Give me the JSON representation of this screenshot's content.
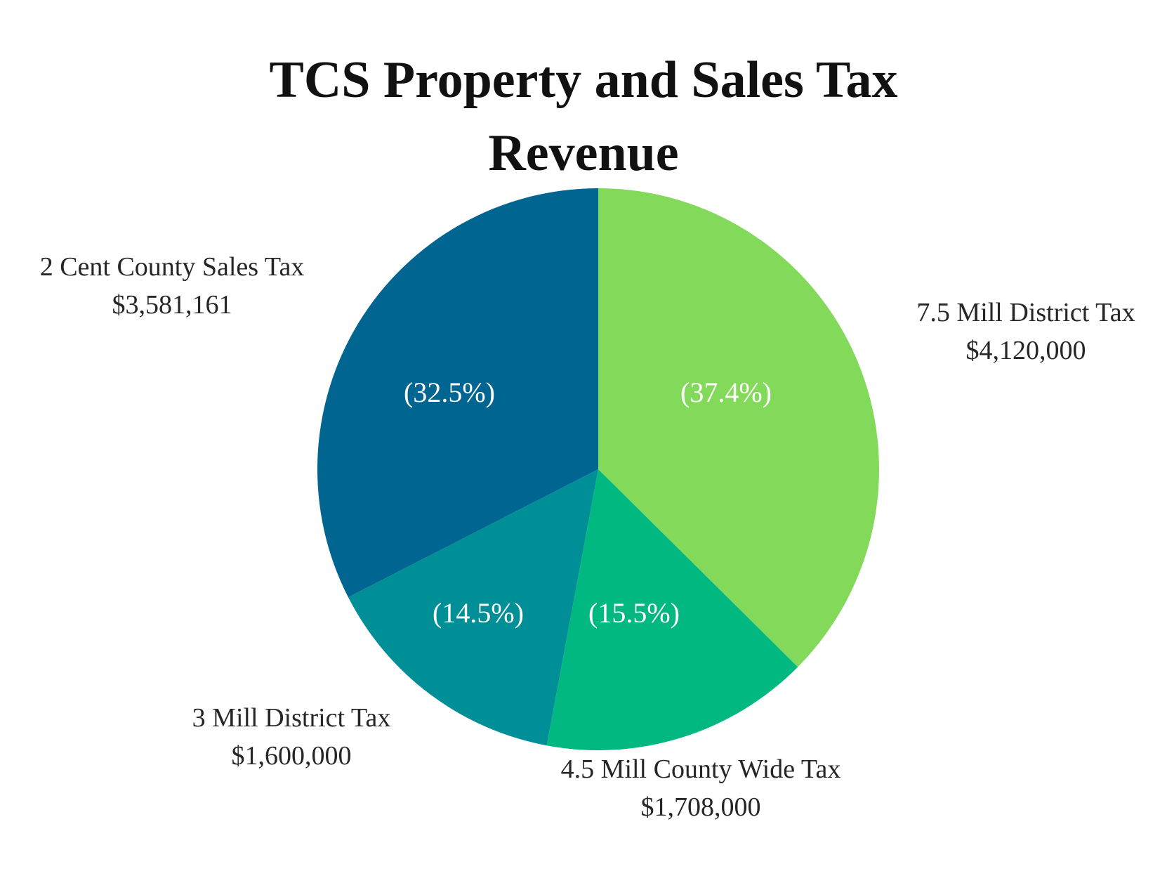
{
  "chart_data": {
    "type": "pie",
    "title_lines": [
      "TCS Property and Sales Tax",
      "Revenue"
    ],
    "legend": "none",
    "slices": [
      {
        "label": "7.5 Mill District Tax",
        "value": 4120000,
        "value_label": "$4,120,000",
        "percent_label": "(37.4%)",
        "color": "#82d95a"
      },
      {
        "label": "4.5 Mill County Wide Tax",
        "value": 1708000,
        "value_label": "$1,708,000",
        "percent_label": "(15.5%)",
        "color": "#00b880"
      },
      {
        "label": "3 Mill District Tax",
        "value": 1600000,
        "value_label": "$1,600,000",
        "percent_label": "(14.5%)",
        "color": "#008f97"
      },
      {
        "label": "2 Cent County Sales Tax",
        "value": 3581161,
        "value_label": "$3,581,161",
        "percent_label": "(32.5%)",
        "color": "#006591"
      }
    ]
  }
}
